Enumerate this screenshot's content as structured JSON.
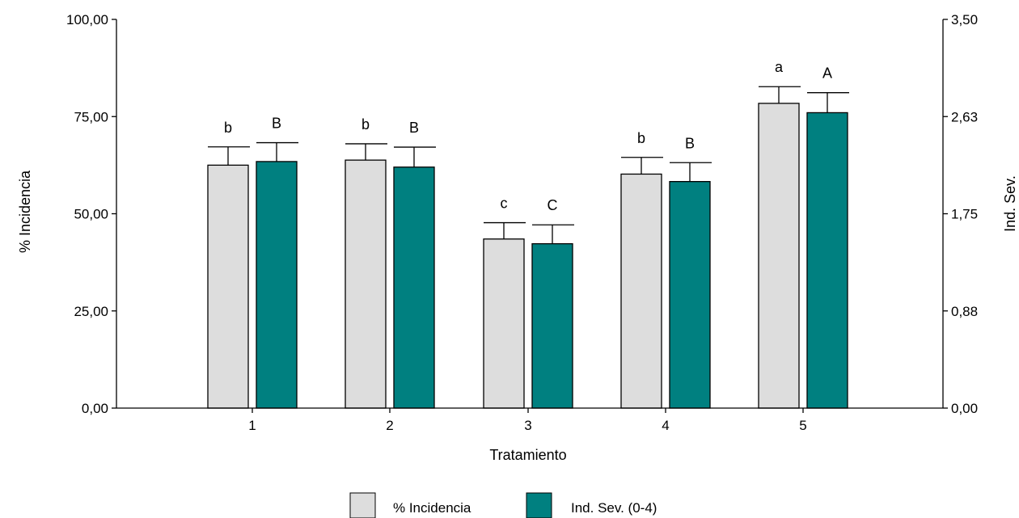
{
  "chart_data": {
    "type": "bar",
    "categories": [
      "1",
      "2",
      "3",
      "4",
      "5"
    ],
    "xlabel": "Tratamiento",
    "ylabel_left": "% Incidencia",
    "ylabel_right": "Ind. Sev.",
    "ylim_left": [
      0,
      100
    ],
    "ylim_right": [
      0,
      3.5
    ],
    "yticks_left": [
      "0,00",
      "25,00",
      "50,00",
      "75,00",
      "100,00"
    ],
    "yticks_right": [
      "0,00",
      "0,88",
      "1,75",
      "2,63",
      "3,50"
    ],
    "grid": false,
    "legend_position": "bottom",
    "series": [
      {
        "name": "% Incidencia",
        "axis": "left",
        "color": "#dddddd",
        "values": [
          62.5,
          63.8,
          43.5,
          60.2,
          78.4
        ],
        "error": [
          4.7,
          4.2,
          4.2,
          4.3,
          4.3
        ],
        "labels": [
          "b",
          "b",
          "c",
          "b",
          "a"
        ]
      },
      {
        "name": "Ind. Sev. (0-4)",
        "axis": "right",
        "color": "#008080",
        "values": [
          2.22,
          2.17,
          1.48,
          2.04,
          2.66
        ],
        "error": [
          0.17,
          0.18,
          0.17,
          0.17,
          0.18
        ],
        "labels": [
          "B",
          "B",
          "C",
          "B",
          "A"
        ]
      }
    ]
  }
}
